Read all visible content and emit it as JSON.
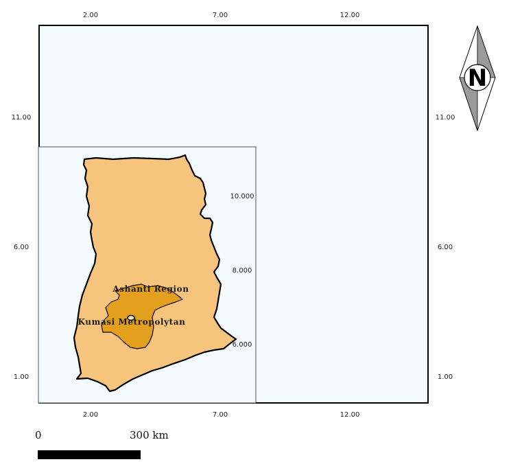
{
  "map": {
    "outer_frame": {
      "x_ticks": [
        "2.00",
        "7.00",
        "12.00"
      ],
      "y_ticks": [
        "11.00",
        "6.00",
        "1.00"
      ],
      "background": "#f3fbfe"
    },
    "inset": {
      "y_ticks": [
        "10.000",
        "8.000",
        "6.000"
      ],
      "background": "#f3fbfe"
    },
    "regions": {
      "country_fill": "#f6c47c",
      "ashanti_fill": "#e39f1e",
      "kumasi_fill": "#eaf4a6",
      "ashanti_label": "Ashanti Region",
      "kumasi_label": "Kumasi Metropolytan"
    },
    "north_arrow": {
      "letter": "N",
      "icon": "north-arrow-icon"
    },
    "scale_bar": {
      "start": "0",
      "end": "300 km"
    }
  }
}
